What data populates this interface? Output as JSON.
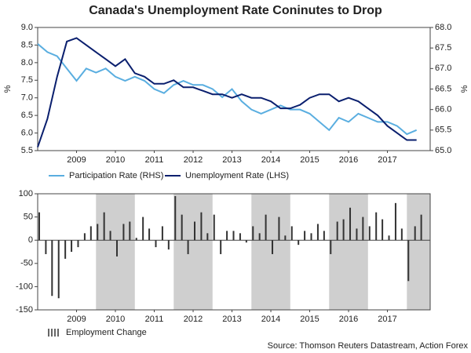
{
  "chart_data": [
    {
      "type": "line",
      "title": "Canada's Unemployment Rate Coninutes to Drop",
      "ylabel": "%",
      "y2label": "%",
      "x": [
        2008.5,
        2008.75,
        2009,
        2009.25,
        2009.5,
        2009.75,
        2010,
        2010.25,
        2010.5,
        2010.75,
        2011,
        2011.25,
        2011.5,
        2011.75,
        2012,
        2012.25,
        2012.5,
        2012.75,
        2013,
        2013.25,
        2013.5,
        2013.75,
        2014,
        2014.25,
        2014.5,
        2014.75,
        2015,
        2015.25,
        2015.5,
        2015.75,
        2016,
        2016.25,
        2016.5,
        2016.75,
        2017,
        2017.25,
        2017.5,
        2017.75,
        2018,
        2018.25
      ],
      "xlim": [
        2008.5,
        2018.6
      ],
      "xticks": [
        {
          "value": 2009.5,
          "label": "2009"
        },
        {
          "value": 2010.5,
          "label": "2010"
        },
        {
          "value": 2011.5,
          "label": "2011"
        },
        {
          "value": 2012.5,
          "label": "2012"
        },
        {
          "value": 2013.5,
          "label": "2013"
        },
        {
          "value": 2014.5,
          "label": "2014"
        },
        {
          "value": 2015.5,
          "label": "2015"
        },
        {
          "value": 2016.5,
          "label": "2016"
        },
        {
          "value": 2017.5,
          "label": "2017"
        }
      ],
      "ylim": [
        5.5,
        9.0
      ],
      "yticks": [
        {
          "value": 5.5,
          "label": "5.5"
        },
        {
          "value": 6,
          "label": "6.0"
        },
        {
          "value": 6.5,
          "label": "6.5"
        },
        {
          "value": 7,
          "label": "7.0"
        },
        {
          "value": 7.5,
          "label": "7.5"
        },
        {
          "value": 8,
          "label": "8.0"
        },
        {
          "value": 8.5,
          "label": "8.5"
        },
        {
          "value": 9,
          "label": "9.0"
        }
      ],
      "y2lim": [
        65.0,
        68.0
      ],
      "y2ticks": [
        {
          "value": 65,
          "label": "65.0"
        },
        {
          "value": 65.5,
          "label": "65.5"
        },
        {
          "value": 66,
          "label": "66.0"
        },
        {
          "value": 66.5,
          "label": "66.5"
        },
        {
          "value": 67,
          "label": "67.0"
        },
        {
          "value": 67.5,
          "label": "67.5"
        },
        {
          "value": 68,
          "label": "68.0"
        }
      ],
      "series": [
        {
          "name": "Participation Rate (RHS)",
          "color": "#5aaee0",
          "axis": "y2",
          "values": [
            67.6,
            67.4,
            67.3,
            67.0,
            66.7,
            67.0,
            66.9,
            67.0,
            66.8,
            66.7,
            66.8,
            66.7,
            66.5,
            66.4,
            66.6,
            66.7,
            66.6,
            66.6,
            66.5,
            66.3,
            66.5,
            66.2,
            66.0,
            65.9,
            66.0,
            66.1,
            66.0,
            66.0,
            65.9,
            65.7,
            65.5,
            65.8,
            65.7,
            65.9,
            65.8,
            65.7,
            65.7,
            65.6,
            65.4,
            65.5
          ]
        },
        {
          "name": "Unemployment Rate (LHS)",
          "color": "#0a1f6e",
          "values": [
            5.6,
            6.4,
            7.6,
            8.6,
            8.7,
            8.5,
            8.3,
            8.1,
            7.9,
            8.1,
            7.7,
            7.6,
            7.4,
            7.4,
            7.5,
            7.3,
            7.3,
            7.2,
            7.1,
            7.1,
            7.0,
            7.1,
            7.0,
            7.0,
            6.9,
            6.7,
            6.7,
            6.8,
            7.0,
            7.1,
            7.1,
            6.9,
            7.0,
            6.9,
            6.7,
            6.5,
            6.2,
            6.0,
            5.8,
            5.8
          ]
        }
      ]
    },
    {
      "type": "bar",
      "x": [
        2008.54,
        2008.71,
        2008.87,
        2009.04,
        2009.21,
        2009.37,
        2009.54,
        2009.71,
        2009.87,
        2010.04,
        2010.21,
        2010.37,
        2010.54,
        2010.71,
        2010.87,
        2011.04,
        2011.21,
        2011.37,
        2011.54,
        2011.71,
        2011.87,
        2012.04,
        2012.21,
        2012.37,
        2012.54,
        2012.71,
        2012.87,
        2013.04,
        2013.21,
        2013.37,
        2013.54,
        2013.71,
        2013.87,
        2014.04,
        2014.21,
        2014.37,
        2014.54,
        2014.71,
        2014.87,
        2015.04,
        2015.21,
        2015.37,
        2015.54,
        2015.71,
        2015.87,
        2016.04,
        2016.21,
        2016.37,
        2016.54,
        2016.71,
        2016.87,
        2017.04,
        2017.21,
        2017.37,
        2017.54,
        2017.71,
        2017.87,
        2018.04,
        2018.21,
        2018.37
      ],
      "xlim": [
        2008.5,
        2018.6
      ],
      "xticks": [
        {
          "value": 2009.5,
          "label": "2009"
        },
        {
          "value": 2010.5,
          "label": "2010"
        },
        {
          "value": 2011.5,
          "label": "2011"
        },
        {
          "value": 2012.5,
          "label": "2012"
        },
        {
          "value": 2013.5,
          "label": "2013"
        },
        {
          "value": 2014.5,
          "label": "2014"
        },
        {
          "value": 2015.5,
          "label": "2015"
        },
        {
          "value": 2016.5,
          "label": "2016"
        },
        {
          "value": 2017.5,
          "label": "2017"
        }
      ],
      "ylim": [
        -150,
        100
      ],
      "yticks": [
        -150,
        -100,
        -50,
        0,
        50,
        100
      ],
      "series": [
        {
          "name": "Employment Change",
          "color": "#333333",
          "values": [
            60,
            -30,
            -120,
            -125,
            -40,
            -25,
            -15,
            15,
            30,
            35,
            60,
            20,
            -35,
            35,
            40,
            5,
            50,
            25,
            -15,
            30,
            -20,
            95,
            55,
            -30,
            40,
            60,
            15,
            55,
            -30,
            20,
            20,
            15,
            -5,
            30,
            15,
            55,
            -30,
            50,
            10,
            30,
            -10,
            20,
            15,
            35,
            20,
            -30,
            40,
            45,
            70,
            25,
            50,
            30,
            60,
            45,
            10,
            80,
            25,
            -88,
            30,
            55
          ]
        }
      ]
    }
  ],
  "source": "Source: Thomson Reuters Datastream, Action Forex"
}
